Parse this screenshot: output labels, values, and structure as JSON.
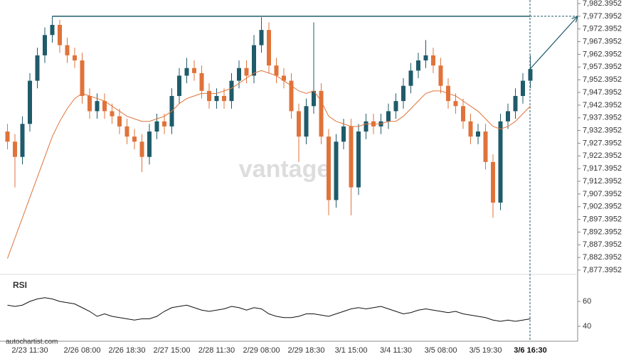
{
  "chart_data": [
    {
      "type": "candlestick",
      "source": "autochartist.com",
      "watermark": "vantage",
      "categories": [
        null,
        null,
        null,
        "2/23 11:30",
        null,
        null,
        null,
        null,
        null,
        null,
        "2/26 08:00",
        null,
        null,
        null,
        null,
        null,
        "2/26 18:30",
        null,
        null,
        null,
        null,
        null,
        "2/27 15:00",
        null,
        null,
        null,
        null,
        null,
        "2/28 11:30",
        null,
        null,
        null,
        null,
        null,
        "2/29 08:00",
        null,
        null,
        null,
        null,
        null,
        "2/29 18:30",
        null,
        null,
        null,
        null,
        null,
        "3/1 15:00",
        null,
        null,
        null,
        null,
        null,
        "3/4 11:30",
        null,
        null,
        null,
        null,
        null,
        "3/5 08:00",
        null,
        null,
        null,
        null,
        null,
        "3/5 19:30",
        null,
        null,
        null,
        null,
        null,
        "3/6 16:30"
      ],
      "open": [
        7932,
        7928,
        7922,
        7935,
        7952,
        7962,
        7970,
        7974,
        7966,
        7962,
        7960,
        7946,
        7940,
        7944,
        7940,
        7938,
        7934,
        7930,
        7928,
        7922,
        7932,
        7936,
        7934,
        7946,
        7954,
        7957,
        7955,
        7948,
        7944,
        7946,
        7944,
        7952,
        7957,
        7954,
        7966,
        7972,
        7958,
        7954,
        7952,
        7940,
        7930,
        7942,
        7948,
        7930,
        7905,
        7928,
        7934,
        7910,
        7932,
        7936,
        7934,
        7936,
        7940,
        7944,
        7950,
        7956,
        7960,
        7962,
        7958,
        7950,
        7944,
        7942,
        7936,
        7930,
        7932,
        7920,
        7904,
        7936,
        7940,
        7946,
        7952
      ],
      "high": [
        7935,
        7931,
        7938,
        7955,
        7965,
        7973,
        7977.4,
        7976,
        7969,
        7965,
        7963,
        7949,
        7947,
        7947,
        7943,
        7941,
        7937,
        7933,
        7931,
        7935,
        7939,
        7939,
        7949,
        7957,
        7961,
        7960,
        7958,
        7951,
        7949,
        7949,
        7955,
        7960,
        7960,
        7970,
        7977,
        7975,
        7961,
        7957,
        7955,
        7943,
        7945,
        7975,
        7951,
        7933,
        7931,
        7937,
        7937,
        7935,
        7939,
        7939,
        7939,
        7943,
        7947,
        7953,
        7959,
        7963,
        7968,
        7965,
        7961,
        7953,
        7947,
        7945,
        7939,
        7935,
        7935,
        7923,
        7939,
        7943,
        7949,
        7955,
        7962
      ],
      "low": [
        7925,
        7910,
        7919,
        7932,
        7949,
        7959,
        7967,
        7963,
        7959,
        7957,
        7943,
        7937,
        7937,
        7937,
        7935,
        7931,
        7927,
        7925,
        7916,
        7919,
        7929,
        7931,
        7931,
        7943,
        7951,
        7952,
        7945,
        7941,
        7941,
        7941,
        7941,
        7949,
        7951,
        7951,
        7963,
        7955,
        7951,
        7949,
        7937,
        7920,
        7927,
        7939,
        7927,
        7899,
        7902,
        7925,
        7899,
        7907,
        7929,
        7931,
        7931,
        7933,
        7937,
        7941,
        7947,
        7953,
        7957,
        7955,
        7947,
        7941,
        7939,
        7933,
        7927,
        7927,
        7917,
        7898,
        7901,
        7933,
        7937,
        7943,
        7949
      ],
      "close": [
        7928,
        7922,
        7935,
        7952,
        7962,
        7970,
        7974,
        7966,
        7962,
        7960,
        7946,
        7940,
        7944,
        7940,
        7938,
        7934,
        7930,
        7928,
        7922,
        7932,
        7936,
        7934,
        7946,
        7954,
        7957,
        7955,
        7948,
        7944,
        7946,
        7944,
        7952,
        7957,
        7954,
        7966,
        7972,
        7958,
        7954,
        7952,
        7940,
        7930,
        7942,
        7948,
        7930,
        7905,
        7928,
        7934,
        7910,
        7932,
        7936,
        7934,
        7936,
        7940,
        7944,
        7950,
        7956,
        7960,
        7962,
        7958,
        7950,
        7944,
        7942,
        7936,
        7930,
        7932,
        7920,
        7904,
        7936,
        7940,
        7946,
        7952,
        7956.6
      ],
      "up_color": "#1f5b6a",
      "down_color": "#e0733a",
      "moving_average": {
        "color": "#e0733a",
        "values": [
          7882,
          7890,
          7898,
          7906,
          7914,
          7922,
          7930,
          7936,
          7941,
          7945,
          7947,
          7946,
          7945,
          7944,
          7942,
          7940,
          7938,
          7937,
          7936,
          7936,
          7937,
          7938,
          7940,
          7943,
          7945,
          7946,
          7947,
          7947,
          7947,
          7948,
          7949,
          7951,
          7953,
          7955,
          7956,
          7955,
          7954,
          7952,
          7950,
          7948,
          7947,
          7948,
          7944,
          7938,
          7936,
          7935,
          7934,
          7934,
          7935,
          7935,
          7935,
          7936,
          7936,
          7938,
          7941,
          7944,
          7947,
          7948,
          7948,
          7947,
          7946,
          7944,
          7942,
          7940,
          7937,
          7934,
          7933,
          7934,
          7936,
          7939,
          7942
        ]
      },
      "resistance": {
        "value": 7977.3952,
        "color": "#1f5b6a"
      },
      "ylim": [
        7876,
        7983.8
      ],
      "yticks": [
        {
          "value": 7982.3952,
          "label": "7,982.3952"
        },
        {
          "value": 7977.3952,
          "label": "7,977.3952"
        },
        {
          "value": 7972.3952,
          "label": "7,972.3952"
        },
        {
          "value": 7967.3952,
          "label": "7,967.3952"
        },
        {
          "value": 7962.3952,
          "label": "7,962.3952"
        },
        {
          "value": 7957.3952,
          "label": "7,957.3952"
        },
        {
          "value": 7952.3952,
          "label": "7,952.3952"
        },
        {
          "value": 7947.3952,
          "label": "7,947.3952"
        },
        {
          "value": 7942.3952,
          "label": "7,942.3952"
        },
        {
          "value": 7937.3952,
          "label": "7,937.3952"
        },
        {
          "value": 7932.3952,
          "label": "7,932.3952"
        },
        {
          "value": 7927.3952,
          "label": "7,927.3952"
        },
        {
          "value": 7922.3952,
          "label": "7,922.3952"
        },
        {
          "value": 7917.3952,
          "label": "7,917.3952"
        },
        {
          "value": 7912.3952,
          "label": "7,912.3952"
        },
        {
          "value": 7907.3952,
          "label": "7,907.3952"
        },
        {
          "value": 7902.3952,
          "label": "7,902.3952"
        },
        {
          "value": 7897.3952,
          "label": "7,897.3952"
        },
        {
          "value": 7892.3952,
          "label": "7,892.3952"
        },
        {
          "value": 7887.3952,
          "label": "7,887.3952"
        },
        {
          "value": 7882.3952,
          "label": "7,882.3952"
        },
        {
          "value": 7877.3952,
          "label": "7,877.3952"
        }
      ]
    },
    {
      "type": "line",
      "title": "RSI",
      "color": "#111111",
      "values": [
        57,
        56,
        57,
        60,
        62,
        63,
        62,
        60,
        59,
        58,
        55,
        52,
        48,
        50,
        48,
        47,
        46,
        45,
        46,
        46,
        48,
        52,
        55,
        56,
        57,
        55,
        53,
        52,
        53,
        54,
        56,
        55,
        53,
        55,
        54,
        50,
        48,
        47,
        47,
        48,
        50,
        50,
        49,
        48,
        50,
        52,
        54,
        55,
        54,
        55,
        56,
        54,
        52,
        50,
        51,
        53,
        54,
        53,
        52,
        51,
        52,
        50,
        49,
        48,
        47,
        45,
        44,
        45,
        44,
        45,
        46
      ],
      "ylim": [
        30,
        80
      ],
      "yticks": [
        40,
        60
      ]
    }
  ]
}
